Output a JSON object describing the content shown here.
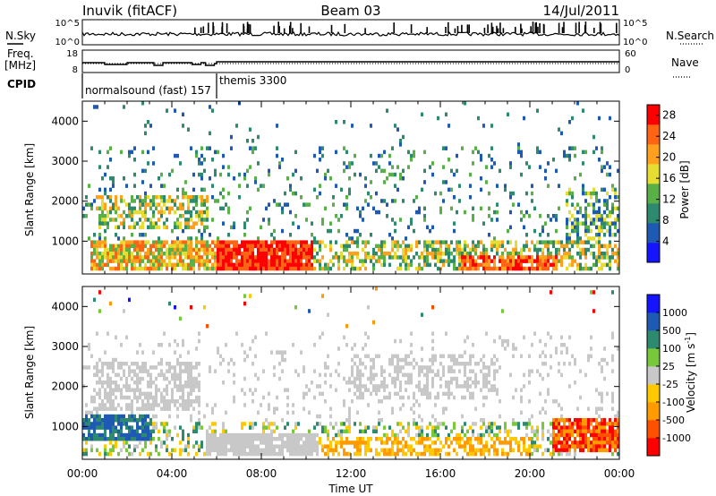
{
  "header": {
    "station": "Inuvik (fitACF)",
    "beam": "Beam 03",
    "date": "14/Jul/2011"
  },
  "top_panels": {
    "nsky_label": "N.Sky",
    "nsky_ticks": [
      "10^5",
      "10^0"
    ],
    "nsearch_label": "N.Search",
    "nsearch_ticks": [
      "10^5",
      "10^0"
    ],
    "freq_label": "Freq.",
    "freq_unit": "[MHz]",
    "freq_ticks": [
      "18",
      "8"
    ],
    "nave_label": "Nave",
    "nave_ticks": [
      "60",
      "0"
    ],
    "cpid_label": "CPID",
    "cpid_entries": [
      {
        "text": "normalsound (fast) 157",
        "start_hour": 0.0
      },
      {
        "text": "themis 3300",
        "start_hour": 6.0
      }
    ]
  },
  "chart_data": [
    {
      "type": "heatmap",
      "title": "Power",
      "xlabel": "",
      "ylabel": "Slant Range [km]",
      "xlim_hours": [
        0,
        24
      ],
      "ylim_km": [
        180,
        4500
      ],
      "x_ticks": [
        "00:00",
        "04:00",
        "08:00",
        "12:00",
        "16:00",
        "20:00",
        "00:00"
      ],
      "y_ticks": [
        1000,
        2000,
        3000,
        4000
      ],
      "colorbar": {
        "label": "Power [dB]",
        "ticks": [
          4,
          8,
          12,
          16,
          20,
          24,
          28
        ],
        "range": [
          0,
          30
        ],
        "colors": [
          "#1414ff",
          "#1e5ab4",
          "#2d8a6e",
          "#58b046",
          "#e6dc32",
          "#ffa01e",
          "#ff6414",
          "#ff0000"
        ]
      },
      "features": [
        {
          "desc": "strong near-range echoes",
          "time_hours": [
            6.0,
            10.2
          ],
          "range_km": [
            300,
            1050
          ],
          "value_db": 28
        },
        {
          "desc": "near-range echoes",
          "time_hours": [
            0.3,
            6.0
          ],
          "range_km": [
            400,
            1000
          ],
          "value_db": 20
        },
        {
          "desc": "near-range echoes",
          "time_hours": [
            17.0,
            21.0
          ],
          "range_km": [
            300,
            700
          ],
          "value_db": 26
        },
        {
          "desc": "mid-range band",
          "time_hours": [
            0.5,
            5.5
          ],
          "range_km": [
            1400,
            2100
          ],
          "value_db": 16
        },
        {
          "desc": "scattered far-range echoes",
          "time_hours": [
            10.0,
            19.0
          ],
          "range_km": [
            1800,
            3300
          ],
          "value_db": 8
        },
        {
          "desc": "late mid-range band",
          "time_hours": [
            21.5,
            24.0
          ],
          "range_km": [
            900,
            2400
          ],
          "value_db": 12
        }
      ]
    },
    {
      "type": "heatmap",
      "title": "Velocity",
      "xlabel": "Time UT",
      "ylabel": "Slant Range [km]",
      "xlim_hours": [
        0,
        24
      ],
      "ylim_km": [
        180,
        4500
      ],
      "x_ticks": [
        "00:00",
        "04:00",
        "08:00",
        "12:00",
        "16:00",
        "20:00",
        "00:00"
      ],
      "y_ticks": [
        1000,
        2000,
        3000,
        4000
      ],
      "colorbar": {
        "label": "Velocity [m s^-1]",
        "unit_base": "Velocity [m s",
        "unit_exp": "-1",
        "unit_close": "]",
        "ticks": [
          "1000",
          "500",
          "100",
          "25",
          "-25",
          "-100",
          "-500",
          "-1000"
        ],
        "range": [
          -1200,
          1200
        ],
        "colors": [
          "#ff0000",
          "#ff5000",
          "#ff9a00",
          "#ffc800",
          "#c8c8c8",
          "#78c83c",
          "#2d8a6e",
          "#1e5ab4",
          "#1414ff"
        ]
      },
      "features": [
        {
          "desc": "ground scatter",
          "time_hours": [
            5.5,
            10.5
          ],
          "range_km": [
            300,
            900
          ],
          "value_ms": 0
        },
        {
          "desc": "ground scatter",
          "time_hours": [
            0.5,
            5.0
          ],
          "range_km": [
            1500,
            2600
          ],
          "value_ms": 0
        },
        {
          "desc": "positive flow near range",
          "time_hours": [
            0.0,
            3.0
          ],
          "range_km": [
            700,
            1300
          ],
          "value_ms": 300
        },
        {
          "desc": "negative flow near range",
          "time_hours": [
            10.0,
            18.0
          ],
          "range_km": [
            300,
            700
          ],
          "value_ms": -200
        },
        {
          "desc": "strong negative flow",
          "time_hours": [
            21.0,
            24.0
          ],
          "range_km": [
            500,
            1200
          ],
          "value_ms": -700
        },
        {
          "desc": "ground scatter far range",
          "time_hours": [
            12.0,
            18.0
          ],
          "range_km": [
            1800,
            2800
          ],
          "value_ms": 0
        }
      ]
    }
  ]
}
